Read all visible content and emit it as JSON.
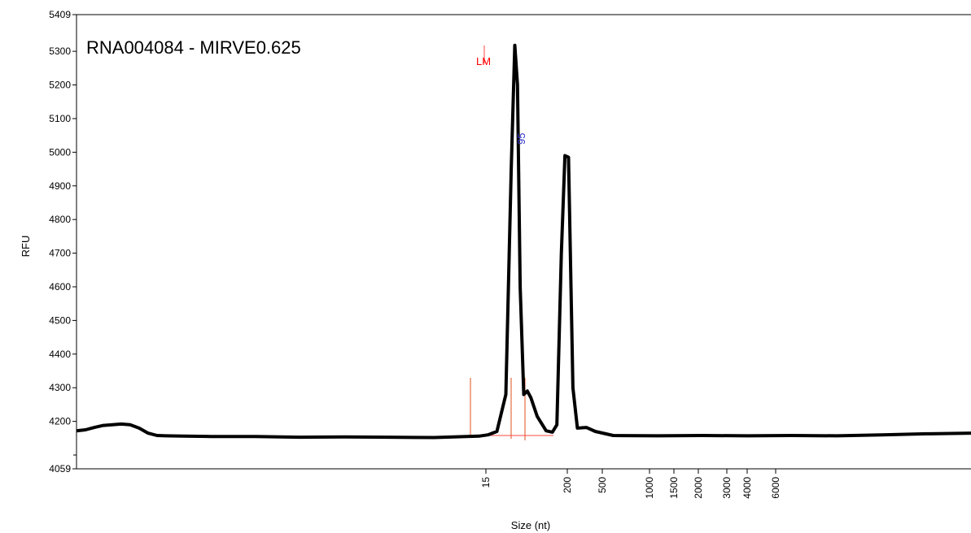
{
  "chart_data": {
    "type": "line",
    "title": "RNA004084 - MIRVE0.625",
    "xlabel": "Size (nt)",
    "ylabel": "RFU",
    "ylim": [
      4059,
      5409
    ],
    "y_ticks": [
      "5409",
      "5300",
      "5200",
      "5100",
      "5000",
      "4900",
      "4800",
      "4700",
      "4600",
      "4500",
      "4400",
      "4300",
      "4200",
      "4059"
    ],
    "x_tick_labels": [
      "15",
      "200",
      "500",
      "1000",
      "1500",
      "2000",
      "3000",
      "4000",
      "6000"
    ],
    "peak_labels": [
      {
        "text": "LM",
        "color": "#ff0000"
      },
      {
        "text": "95",
        "color": "#3333cc"
      }
    ],
    "series": [
      {
        "color": "#000000",
        "x_relative_percent": [
          0,
          1,
          2,
          3,
          4,
          5,
          6,
          7,
          8,
          9,
          10,
          12,
          15,
          20,
          25,
          30,
          35,
          40,
          45,
          46,
          47,
          48,
          48.6,
          49,
          49.3,
          49.6,
          50,
          50.4,
          50.8,
          51.5,
          52.5,
          53.2,
          53.7,
          54.2,
          54.6,
          55,
          55.5,
          56,
          57,
          58,
          60,
          65,
          70,
          75,
          80,
          85,
          90,
          95,
          100
        ],
        "values": [
          4172,
          4175,
          4182,
          4188,
          4190,
          4192,
          4190,
          4180,
          4165,
          4158,
          4157,
          4156,
          4155,
          4155,
          4153,
          4154,
          4153,
          4152,
          4156,
          4160,
          4170,
          4280,
          4950,
          5318,
          5200,
          4600,
          4280,
          4290,
          4270,
          4215,
          4172,
          4168,
          4190,
          4700,
          4990,
          4985,
          4300,
          4180,
          4182,
          4170,
          4158,
          4157,
          4158,
          4157,
          4158,
          4157,
          4160,
          4163,
          4165
        ]
      }
    ],
    "marker_color": "#e0501a",
    "baseline_color": "#ff4444"
  }
}
